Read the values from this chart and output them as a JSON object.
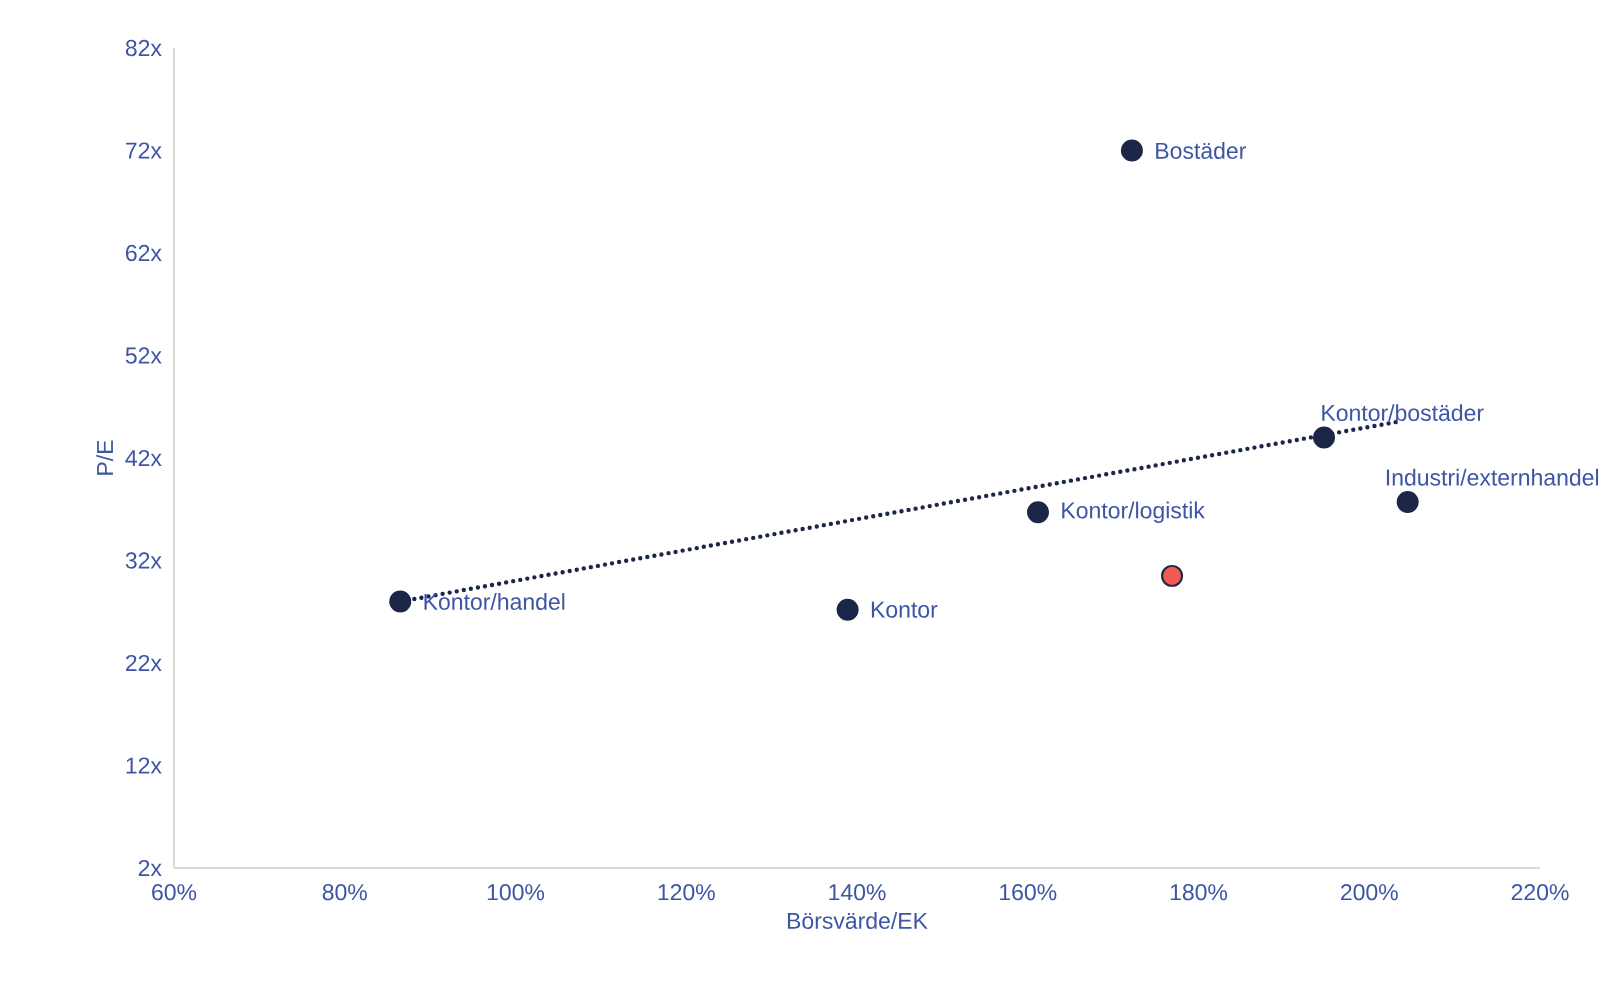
{
  "chart_data": {
    "type": "scatter",
    "xlabel": "Börsvärde/EK",
    "ylabel": "P/E",
    "xlim": [
      60,
      220
    ],
    "ylim": [
      2,
      82
    ],
    "xticks": [
      {
        "value": 60,
        "label": "60%"
      },
      {
        "value": 80,
        "label": "80%"
      },
      {
        "value": 100,
        "label": "100%"
      },
      {
        "value": 120,
        "label": "120%"
      },
      {
        "value": 140,
        "label": "140%"
      },
      {
        "value": 160,
        "label": "160%"
      },
      {
        "value": 180,
        "label": "180%"
      },
      {
        "value": 200,
        "label": "200%"
      },
      {
        "value": 220,
        "label": "220%"
      }
    ],
    "yticks": [
      {
        "value": 2,
        "label": "2x"
      },
      {
        "value": 12,
        "label": "12x"
      },
      {
        "value": 22,
        "label": "22x"
      },
      {
        "value": 32,
        "label": "32x"
      },
      {
        "value": 42,
        "label": "42x"
      },
      {
        "value": 52,
        "label": "52x"
      },
      {
        "value": 62,
        "label": "62x"
      },
      {
        "value": 72,
        "label": "72x"
      },
      {
        "value": 82,
        "label": "82x"
      }
    ],
    "grid": false,
    "marker": "circle",
    "series": [
      {
        "color": "#1c2748",
        "x": [
          86.5,
          138.9,
          161.2,
          172.2,
          194.7,
          204.5
        ],
        "values": [
          28.0,
          27.2,
          36.7,
          72.0,
          44.0,
          37.7
        ]
      },
      {
        "color": "#f05a50",
        "x": [
          176.9
        ],
        "values": [
          30.5
        ]
      },
      {
        "type": "line",
        "color": "#1c2748",
        "line_style": "dotted",
        "marker": "none",
        "x": [
          86.5,
          203.1
        ],
        "values": [
          28.0,
          45.5
        ]
      }
    ],
    "annotations": [
      {
        "text": "Kontor/handel",
        "x": 86.5,
        "y": 28.0
      },
      {
        "text": "Kontor",
        "x": 138.9,
        "y": 27.2
      },
      {
        "text": "Kontor/logistik",
        "x": 161.2,
        "y": 36.7
      },
      {
        "text": "Bostäder",
        "x": 172.2,
        "y": 72.0
      },
      {
        "text": "Kontor/bostäder",
        "x": 194.7,
        "y": 44.0
      },
      {
        "text": "Industri/externhandel",
        "x": 204.5,
        "y": 37.7
      }
    ]
  }
}
